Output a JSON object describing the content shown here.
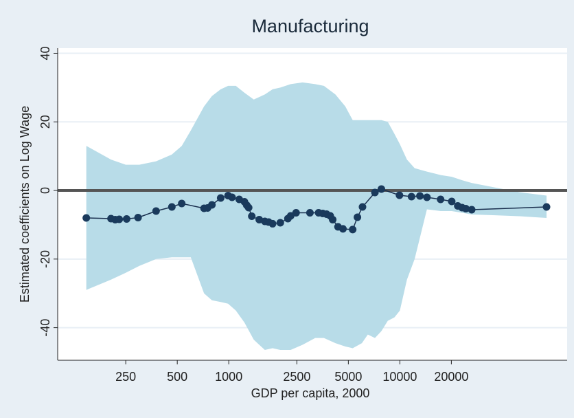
{
  "chart_data": {
    "type": "line",
    "title": "Manufacturing",
    "xlabel": "GDP per capita, 2000",
    "ylabel": "Estimated coefficients on Log Wage",
    "x_scale": "log",
    "x_ticks": [
      250,
      500,
      1000,
      2500,
      5000,
      10000,
      20000
    ],
    "x_tick_labels": [
      "250",
      "500",
      "1000",
      "2500",
      "5000",
      "10000",
      "20000"
    ],
    "y_ticks": [
      -40,
      -20,
      0,
      20,
      40
    ],
    "y_tick_labels": [
      "-40",
      "-20",
      "0",
      "20",
      "40"
    ],
    "xlim": [
      100,
      95000
    ],
    "ylim": [
      -49.5,
      41.5
    ],
    "grid": "horizontal",
    "reference_line_y": 0,
    "colors": {
      "band": "#b8dce8",
      "line": "#1a2f4e",
      "marker": "#1a3a5c",
      "zero_line": "#555555",
      "grid": "#e8eff5",
      "background": "#e8eff5",
      "plot_background": "#ffffff"
    },
    "series": [
      {
        "type": "line",
        "x": [
          147,
          205,
          217,
          229,
          253,
          295,
          376,
          465,
          531,
          717,
          752,
          797,
          897,
          991,
          1045,
          1151,
          1235,
          1274,
          1307,
          1363,
          1507,
          1625,
          1709,
          1804,
          2001,
          2216,
          2300,
          2474,
          2982,
          3350,
          3542,
          3731,
          3920,
          4050,
          4350,
          4650,
          5300,
          5650,
          6050,
          7150,
          7800,
          9950,
          11700,
          13100,
          14400,
          17300,
          20100,
          21800,
          23100,
          24300,
          26300,
          72000
        ],
        "y": [
          -8,
          -8.2,
          -8.5,
          -8.4,
          -8.3,
          -7.9,
          -6,
          -4.8,
          -3.8,
          -5.2,
          -5.1,
          -4.2,
          -2.2,
          -1.5,
          -2,
          -2.6,
          -3.3,
          -4.3,
          -5,
          -7.5,
          -8.5,
          -9,
          -9.2,
          -9.7,
          -9.4,
          -8.2,
          -7.4,
          -6.5,
          -6.5,
          -6.5,
          -6.7,
          -6.9,
          -7.4,
          -8.5,
          -10.6,
          -11.2,
          -11.4,
          -7.8,
          -4.8,
          -0.6,
          0.4,
          -1.4,
          -1.8,
          -1.6,
          -2,
          -2.6,
          -3.2,
          -4.5,
          -5,
          -5.3,
          -5.6,
          -4.8
        ]
      },
      {
        "type": "band",
        "x": [
          147,
          205,
          250,
          300,
          376,
          465,
          531,
          600,
          717,
          797,
          897,
          991,
          1100,
          1235,
          1400,
          1625,
          1804,
          2001,
          2300,
          2700,
          3200,
          3600,
          4200,
          4800,
          5300,
          6000,
          6500,
          7150,
          7800,
          8500,
          9300,
          10000,
          11000,
          12200,
          14400,
          17300,
          20100,
          23100,
          26300,
          35000,
          50000,
          72000
        ],
        "upper": [
          13,
          9,
          7.5,
          7.5,
          8.5,
          10.5,
          13,
          17.5,
          24.5,
          27.5,
          29.5,
          30.5,
          30.5,
          28.5,
          26.5,
          28,
          29.5,
          30,
          31,
          31.5,
          31,
          30.5,
          28,
          24.5,
          20.5,
          20.5,
          20.5,
          20.5,
          20.5,
          20,
          16.5,
          13.5,
          9,
          6.5,
          5.5,
          4.5,
          4,
          3,
          2.2,
          1,
          -0.5,
          -1.5
        ],
        "lower": [
          -29,
          -26,
          -24,
          -22,
          -20,
          -19.5,
          -19.5,
          -19.5,
          -30,
          -32,
          -32.5,
          -33,
          -35,
          -38.5,
          -43.5,
          -46.5,
          -46,
          -46.5,
          -46.5,
          -45,
          -43,
          -43,
          -44.5,
          -45.5,
          -46,
          -44.5,
          -42,
          -43,
          -41,
          -38,
          -37,
          -35,
          -26,
          -20,
          -5.5,
          -6,
          -6,
          -6.5,
          -7,
          -7.2,
          -7.5,
          -8
        ]
      }
    ]
  }
}
